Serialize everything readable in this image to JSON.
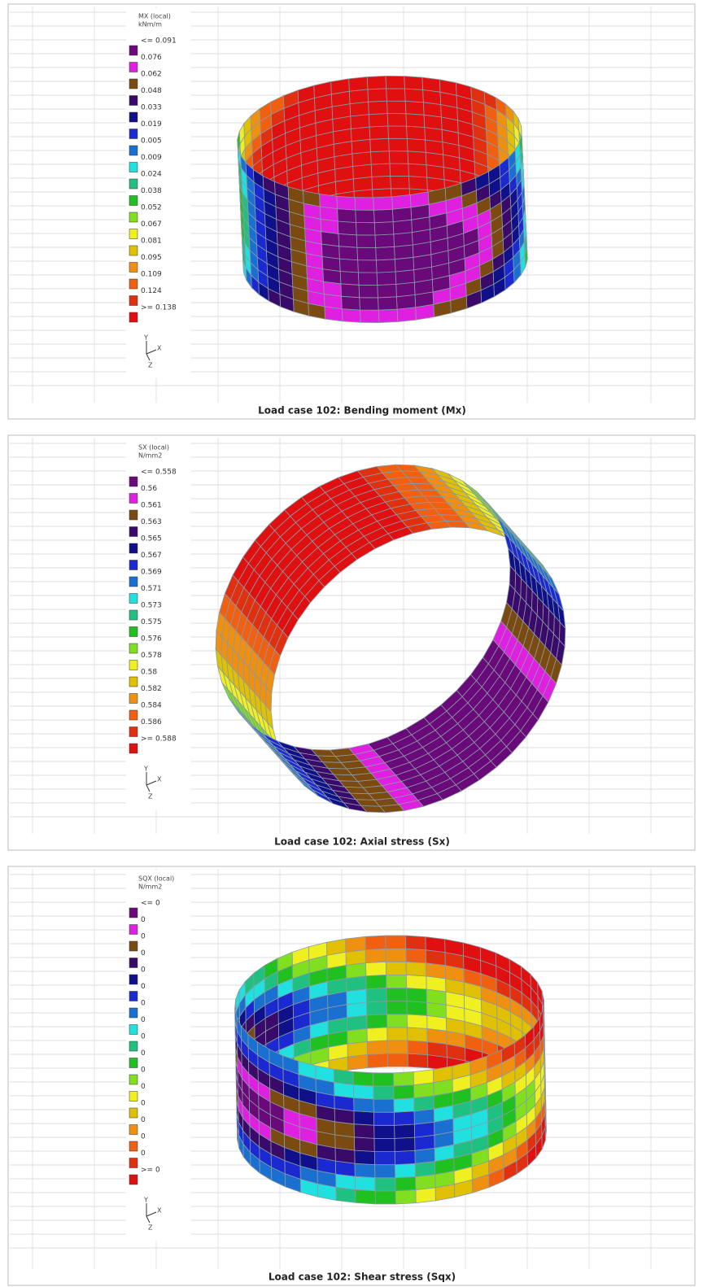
{
  "panels": [
    {
      "legend_title": [
        "MX (local)",
        "kNm/m"
      ],
      "legend_labels": [
        "<= 0.091",
        "0.076",
        "0.062",
        "0.048",
        "0.033",
        "0.019",
        "0.005",
        "0.009",
        "0.024",
        "0.038",
        "0.052",
        "0.067",
        "0.081",
        "0.095",
        "0.109",
        "0.124",
        ">= 0.138"
      ],
      "axis_labels": [
        "Y",
        "X",
        "Z"
      ],
      "caption": "Load case 102: Bending moment (Mx)"
    },
    {
      "legend_title": [
        "SX (local)",
        "N/mm2"
      ],
      "legend_labels": [
        "<= 0.558",
        "0.56",
        "0.561",
        "0.563",
        "0.565",
        "0.567",
        "0.569",
        "0.571",
        "0.573",
        "0.575",
        "0.576",
        "0.578",
        "0.58",
        "0.582",
        "0.584",
        "0.586",
        ">= 0.588"
      ],
      "axis_labels": [
        "Y",
        "X",
        "Z"
      ],
      "caption": "Load case 102: Axial stress (Sx)"
    },
    {
      "legend_title": [
        "SQX (local)",
        "N/mm2"
      ],
      "legend_labels": [
        "<= 0",
        "0",
        "0",
        "0",
        "0",
        "0",
        "0",
        "0",
        "0",
        "0",
        "0",
        "0",
        "0",
        "0",
        "0",
        "0",
        ">= 0"
      ],
      "axis_labels": [
        "Y",
        "X",
        "Z"
      ],
      "caption": "Load case 102: Shear stress (Sqx)"
    }
  ]
}
